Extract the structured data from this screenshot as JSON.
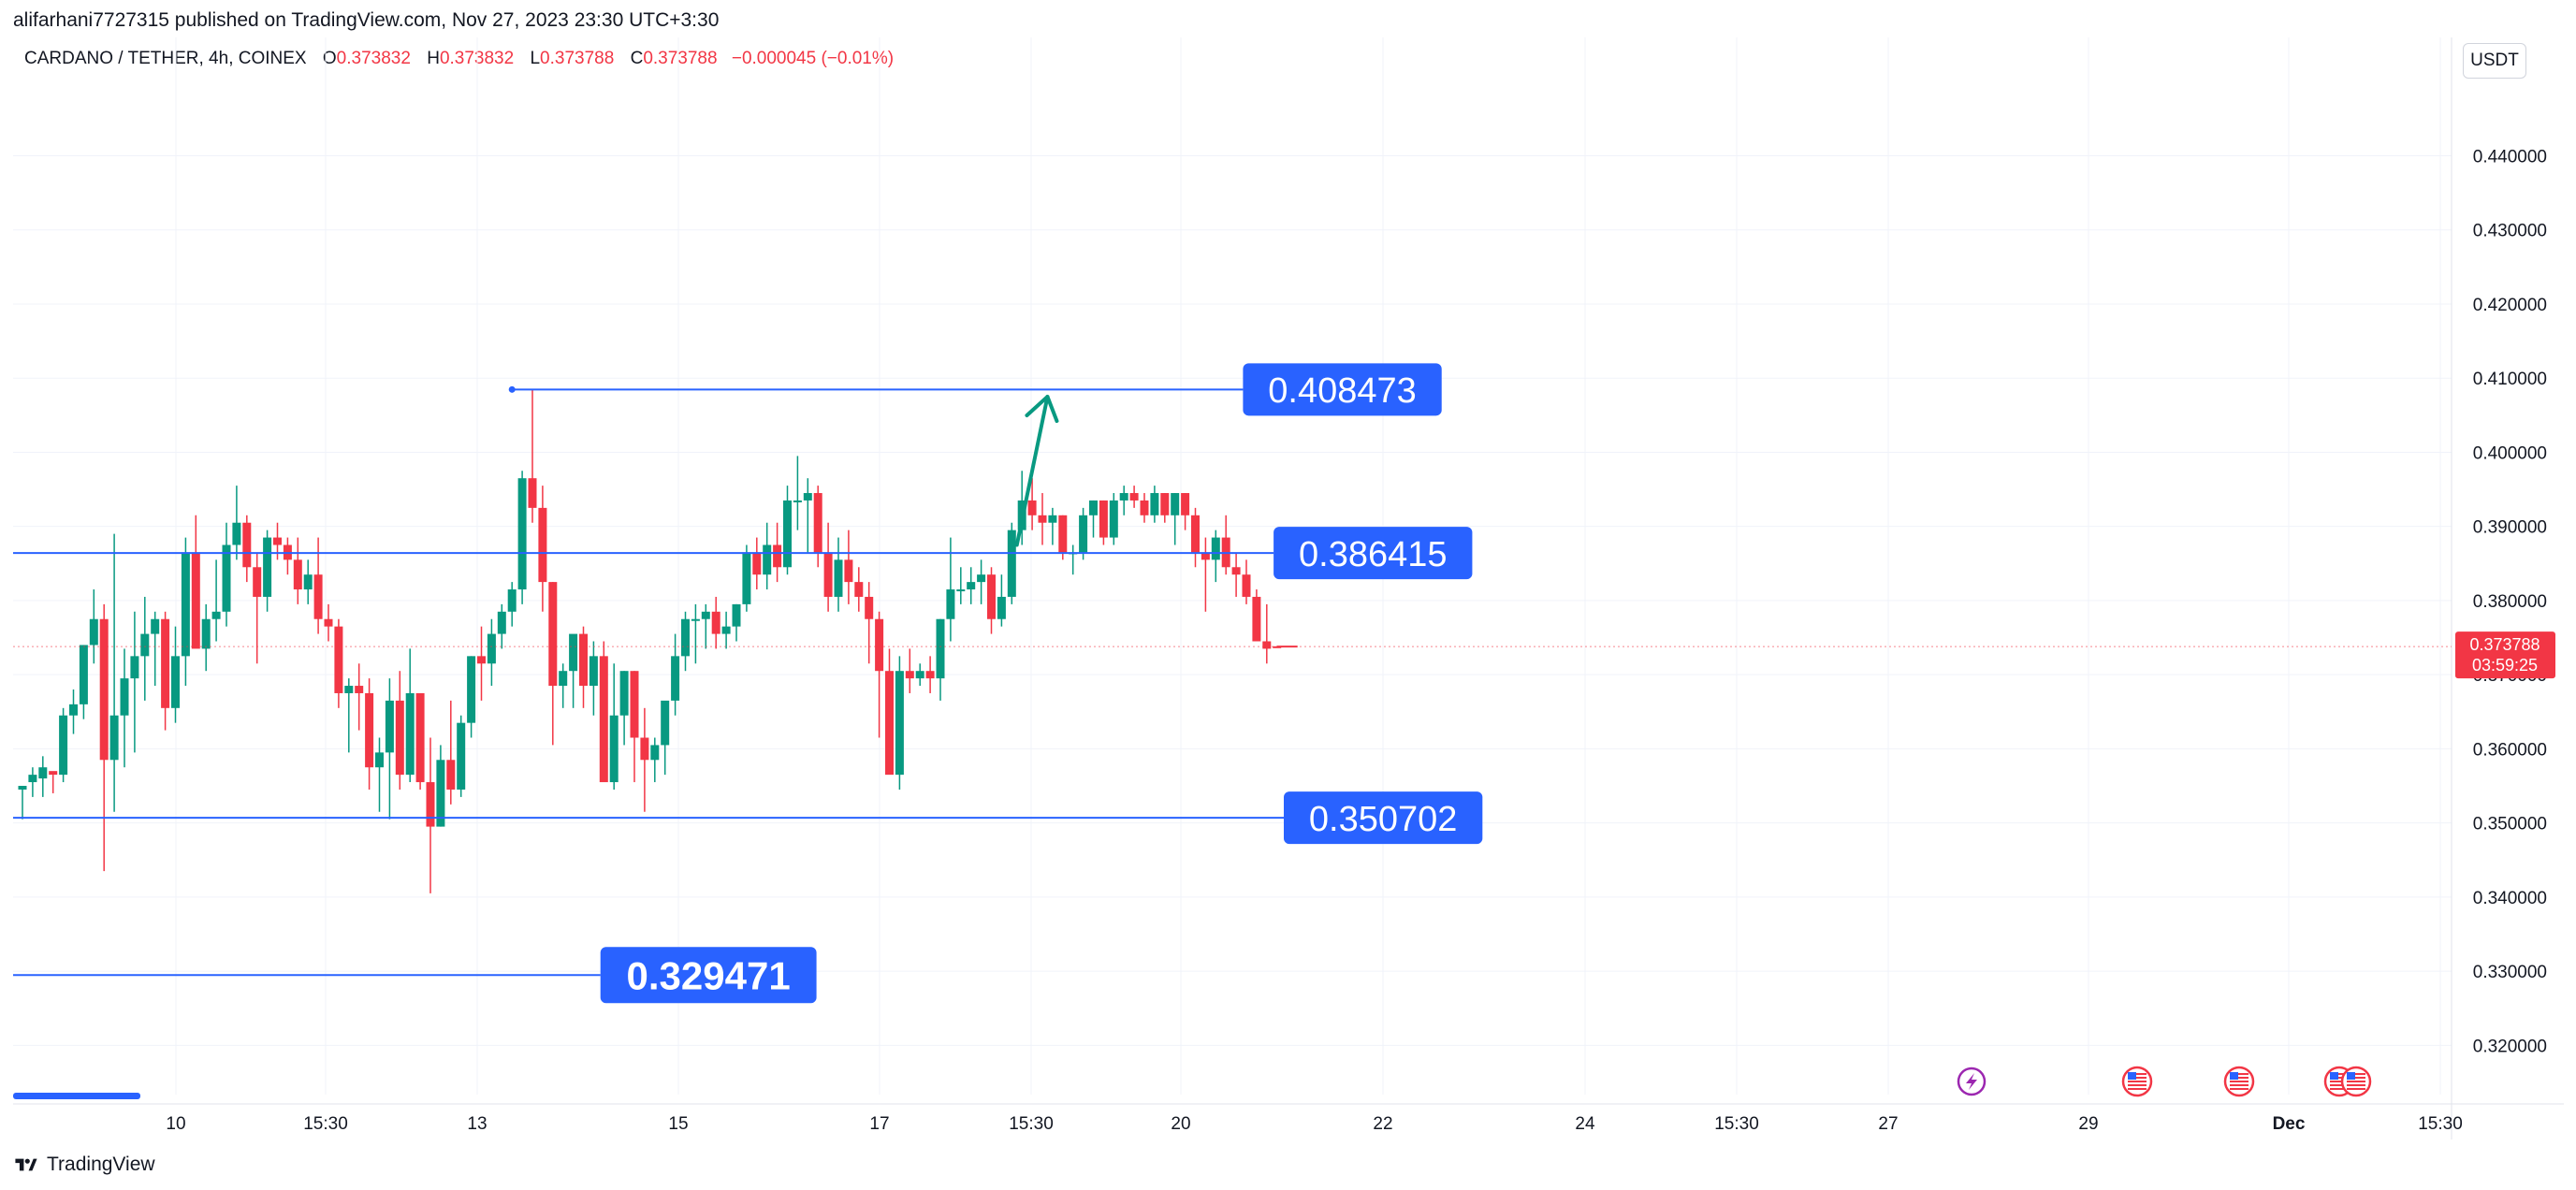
{
  "publisher": "alifarhani7727315 published on TradingView.com, Nov 27, 2023 23:30 UTC+3:30",
  "header": {
    "symbol": "CARDANO / TETHER, 4h, COINEX",
    "o_label": "O",
    "o_value": "0.373832",
    "h_label": "H",
    "h_value": "0.373832",
    "l_label": "L",
    "l_value": "0.373788",
    "c_label": "C",
    "c_value": "0.373788",
    "change": "−0.000045 (−0.01%)"
  },
  "currency_button": "USDT",
  "footer_brand": "TradingView",
  "colors": {
    "up": "#089981",
    "down": "#f23645",
    "line": "#2962ff",
    "label_bg": "#2962ff",
    "grid": "#f0f3fa"
  },
  "chart_data": {
    "type": "candlestick",
    "y_ticks": [
      "0.440000",
      "0.430000",
      "0.420000",
      "0.410000",
      "0.400000",
      "0.390000",
      "0.380000",
      "0.370000",
      "0.360000",
      "0.350000",
      "0.340000",
      "0.330000",
      "0.320000"
    ],
    "ylim": [
      0.3155,
      0.4465
    ],
    "x_ticks": [
      "10",
      "15:30",
      "13",
      "15",
      "17",
      "15:30",
      "20",
      "22",
      "24",
      "15:30",
      "27",
      "29",
      "Dec",
      "15:30"
    ],
    "horizontal_levels": [
      {
        "value": 0.408473,
        "label": "0.408473",
        "start_candle": 48,
        "end_candle": 116
      },
      {
        "value": 0.386415,
        "label": "0.386415",
        "start_candle": 0,
        "end_candle": 119
      },
      {
        "value": 0.350702,
        "label": "0.350702",
        "start_candle": 0,
        "end_candle": 120
      },
      {
        "value": 0.329471,
        "label": "0.329471",
        "start_candle": 0,
        "end_candle": 53
      }
    ],
    "arrow": {
      "from_candle": 97.5,
      "from_value": 0.3875,
      "to_candle": 100.5,
      "to_value": 0.4075
    },
    "current_price": {
      "value": "0.373788",
      "countdown": "03:59:25"
    },
    "candles": [
      [
        0.3545,
        0.355,
        0.3505,
        0.355
      ],
      [
        0.3555,
        0.3575,
        0.3535,
        0.3565
      ],
      [
        0.356,
        0.359,
        0.3535,
        0.3575
      ],
      [
        0.357,
        0.3565,
        0.354,
        0.3565
      ],
      [
        0.3565,
        0.3655,
        0.3555,
        0.3645
      ],
      [
        0.3645,
        0.368,
        0.362,
        0.366
      ],
      [
        0.366,
        0.374,
        0.364,
        0.374
      ],
      [
        0.374,
        0.3815,
        0.3715,
        0.3775
      ],
      [
        0.3775,
        0.3795,
        0.3435,
        0.3585
      ],
      [
        0.3585,
        0.389,
        0.3515,
        0.3645
      ],
      [
        0.3645,
        0.3735,
        0.3575,
        0.3695
      ],
      [
        0.3695,
        0.3785,
        0.3595,
        0.3725
      ],
      [
        0.3725,
        0.3805,
        0.3665,
        0.3755
      ],
      [
        0.3755,
        0.3785,
        0.3685,
        0.3775
      ],
      [
        0.3775,
        0.3785,
        0.3625,
        0.3655
      ],
      [
        0.3655,
        0.3765,
        0.3635,
        0.3725
      ],
      [
        0.3725,
        0.3885,
        0.3685,
        0.3865
      ],
      [
        0.3865,
        0.3915,
        0.3745,
        0.3735
      ],
      [
        0.3735,
        0.3795,
        0.3705,
        0.3775
      ],
      [
        0.3775,
        0.3855,
        0.3745,
        0.3785
      ],
      [
        0.3785,
        0.3905,
        0.3765,
        0.3875
      ],
      [
        0.3875,
        0.3955,
        0.3855,
        0.3905
      ],
      [
        0.3905,
        0.3915,
        0.3825,
        0.3845
      ],
      [
        0.3845,
        0.3865,
        0.3715,
        0.3805
      ],
      [
        0.3805,
        0.3895,
        0.3785,
        0.3885
      ],
      [
        0.3885,
        0.3905,
        0.3855,
        0.3875
      ],
      [
        0.3875,
        0.3885,
        0.3835,
        0.3855
      ],
      [
        0.3855,
        0.3885,
        0.3795,
        0.3815
      ],
      [
        0.3815,
        0.3855,
        0.3795,
        0.3835
      ],
      [
        0.3835,
        0.3885,
        0.3755,
        0.3775
      ],
      [
        0.3775,
        0.3795,
        0.3745,
        0.3765
      ],
      [
        0.3765,
        0.3775,
        0.3655,
        0.3675
      ],
      [
        0.3675,
        0.3695,
        0.3595,
        0.3685
      ],
      [
        0.3685,
        0.3715,
        0.3625,
        0.3675
      ],
      [
        0.3675,
        0.3695,
        0.3545,
        0.3575
      ],
      [
        0.3575,
        0.3615,
        0.3515,
        0.3595
      ],
      [
        0.3595,
        0.3695,
        0.3505,
        0.3665
      ],
      [
        0.3665,
        0.3705,
        0.3545,
        0.3565
      ],
      [
        0.3565,
        0.3735,
        0.3555,
        0.3675
      ],
      [
        0.3675,
        0.3665,
        0.3545,
        0.3555
      ],
      [
        0.3555,
        0.3615,
        0.3405,
        0.3495
      ],
      [
        0.3495,
        0.3605,
        0.3495,
        0.3585
      ],
      [
        0.3585,
        0.3665,
        0.3525,
        0.3545
      ],
      [
        0.3545,
        0.3645,
        0.3535,
        0.3635
      ],
      [
        0.3635,
        0.3725,
        0.3615,
        0.3725
      ],
      [
        0.3725,
        0.3765,
        0.3665,
        0.3715
      ],
      [
        0.3715,
        0.3775,
        0.3685,
        0.3755
      ],
      [
        0.3755,
        0.3795,
        0.3735,
        0.3785
      ],
      [
        0.3785,
        0.3825,
        0.3765,
        0.3815
      ],
      [
        0.3815,
        0.3975,
        0.3795,
        0.3965
      ],
      [
        0.3965,
        0.4085,
        0.3905,
        0.3925
      ],
      [
        0.3925,
        0.3955,
        0.3785,
        0.3825
      ],
      [
        0.3825,
        0.3825,
        0.3605,
        0.3685
      ],
      [
        0.3685,
        0.3715,
        0.3655,
        0.3705
      ],
      [
        0.3705,
        0.3745,
        0.3655,
        0.3755
      ],
      [
        0.3755,
        0.3765,
        0.3655,
        0.3685
      ],
      [
        0.3685,
        0.3745,
        0.3645,
        0.3725
      ],
      [
        0.3725,
        0.3745,
        0.3555,
        0.3555
      ],
      [
        0.3555,
        0.3715,
        0.3545,
        0.3645
      ],
      [
        0.3645,
        0.3705,
        0.3605,
        0.3705
      ],
      [
        0.3705,
        0.3705,
        0.3555,
        0.3615
      ],
      [
        0.3615,
        0.3655,
        0.3515,
        0.3585
      ],
      [
        0.3585,
        0.3615,
        0.3555,
        0.3605
      ],
      [
        0.3605,
        0.3655,
        0.3565,
        0.3665
      ],
      [
        0.3665,
        0.3755,
        0.3645,
        0.3725
      ],
      [
        0.3725,
        0.3785,
        0.3705,
        0.3775
      ],
      [
        0.3775,
        0.3795,
        0.3715,
        0.3775
      ],
      [
        0.3775,
        0.3795,
        0.3735,
        0.3785
      ],
      [
        0.3785,
        0.3805,
        0.3735,
        0.3755
      ],
      [
        0.3755,
        0.3785,
        0.3735,
        0.3765
      ],
      [
        0.3765,
        0.3795,
        0.3745,
        0.3795
      ],
      [
        0.3795,
        0.3875,
        0.3785,
        0.3865
      ],
      [
        0.3865,
        0.3885,
        0.3815,
        0.3835
      ],
      [
        0.3835,
        0.3905,
        0.3815,
        0.3875
      ],
      [
        0.3875,
        0.3905,
        0.3825,
        0.3845
      ],
      [
        0.3845,
        0.3955,
        0.3835,
        0.3935
      ],
      [
        0.3935,
        0.3995,
        0.3895,
        0.3935
      ],
      [
        0.3935,
        0.3965,
        0.3865,
        0.3945
      ],
      [
        0.3945,
        0.3955,
        0.3845,
        0.3865
      ],
      [
        0.3865,
        0.3905,
        0.3785,
        0.3805
      ],
      [
        0.3805,
        0.3885,
        0.3785,
        0.3855
      ],
      [
        0.3855,
        0.3895,
        0.3795,
        0.3825
      ],
      [
        0.3825,
        0.3845,
        0.3785,
        0.3805
      ],
      [
        0.3805,
        0.3825,
        0.3715,
        0.3775
      ],
      [
        0.3775,
        0.3785,
        0.3615,
        0.3705
      ],
      [
        0.3705,
        0.3735,
        0.3575,
        0.3565
      ],
      [
        0.3565,
        0.3725,
        0.3545,
        0.3705
      ],
      [
        0.3705,
        0.3735,
        0.3675,
        0.3695
      ],
      [
        0.3695,
        0.3715,
        0.3685,
        0.3705
      ],
      [
        0.3705,
        0.3725,
        0.3675,
        0.3695
      ],
      [
        0.3695,
        0.3775,
        0.3665,
        0.3775
      ],
      [
        0.3775,
        0.3885,
        0.3745,
        0.3815
      ],
      [
        0.3815,
        0.3845,
        0.3795,
        0.3815
      ],
      [
        0.3815,
        0.3845,
        0.3795,
        0.3825
      ],
      [
        0.3825,
        0.3855,
        0.3795,
        0.3835
      ],
      [
        0.3835,
        0.3845,
        0.3755,
        0.3775
      ],
      [
        0.3775,
        0.3835,
        0.3765,
        0.3805
      ],
      [
        0.3805,
        0.3905,
        0.3795,
        0.3895
      ],
      [
        0.3895,
        0.3975,
        0.3875,
        0.3935
      ],
      [
        0.3935,
        0.3965,
        0.3895,
        0.3915
      ],
      [
        0.3915,
        0.3945,
        0.3875,
        0.3905
      ],
      [
        0.3905,
        0.3925,
        0.3875,
        0.3915
      ],
      [
        0.3915,
        0.3915,
        0.3855,
        0.3865
      ],
      [
        0.3865,
        0.3875,
        0.3835,
        0.3865
      ],
      [
        0.3865,
        0.3925,
        0.3855,
        0.3915
      ],
      [
        0.3915,
        0.3935,
        0.3885,
        0.3935
      ],
      [
        0.3935,
        0.3935,
        0.3875,
        0.3885
      ],
      [
        0.3885,
        0.3945,
        0.3875,
        0.3935
      ],
      [
        0.3935,
        0.3955,
        0.3915,
        0.3945
      ],
      [
        0.3945,
        0.3955,
        0.3925,
        0.3935
      ],
      [
        0.3935,
        0.3945,
        0.3905,
        0.3915
      ],
      [
        0.3915,
        0.3955,
        0.3905,
        0.3945
      ],
      [
        0.3945,
        0.3945,
        0.3905,
        0.3915
      ],
      [
        0.3915,
        0.3945,
        0.3875,
        0.3945
      ],
      [
        0.3945,
        0.3945,
        0.3895,
        0.3915
      ],
      [
        0.3915,
        0.3925,
        0.3845,
        0.3865
      ],
      [
        0.3865,
        0.3885,
        0.3785,
        0.3855
      ],
      [
        0.3855,
        0.3895,
        0.3825,
        0.3885
      ],
      [
        0.3885,
        0.3915,
        0.3835,
        0.3845
      ],
      [
        0.3845,
        0.3865,
        0.3805,
        0.3835
      ],
      [
        0.3835,
        0.3855,
        0.3795,
        0.3805
      ],
      [
        0.3805,
        0.3815,
        0.3745,
        0.3745
      ],
      [
        0.3745,
        0.3795,
        0.3715,
        0.3735
      ],
      [
        0.37383,
        0.37383,
        0.37378,
        0.37379
      ]
    ]
  }
}
